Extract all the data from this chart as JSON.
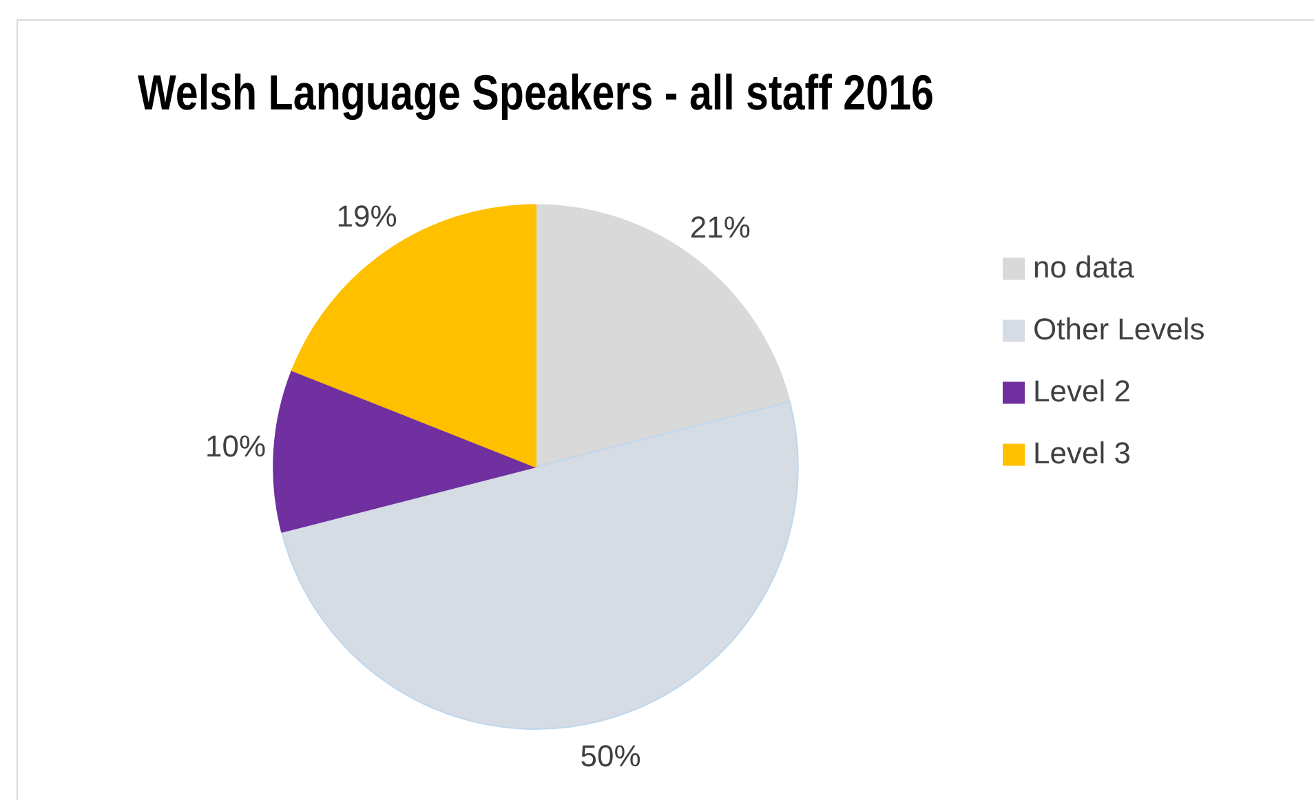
{
  "chart_data": {
    "type": "pie",
    "title": "Welsh Language Speakers - all staff 2016",
    "categories": [
      "no data",
      "Other Levels",
      "Level 2",
      "Level 3"
    ],
    "values": [
      21,
      50,
      10,
      19
    ],
    "colors": [
      "#d9d9d9",
      "#d6dce4",
      "#7030a0",
      "#ffc000"
    ],
    "value_labels": [
      "21%",
      "50%",
      "10%",
      "19%"
    ],
    "legend": "right"
  }
}
